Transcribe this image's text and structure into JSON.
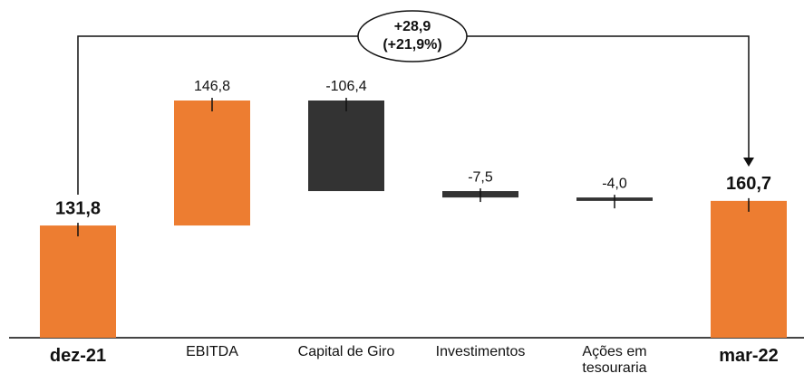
{
  "chart_data": {
    "type": "waterfall",
    "categories": [
      "dez-21",
      "EBITDA",
      "Capital de Giro",
      "Investimentos",
      "Ações em tesouraria",
      "mar-22"
    ],
    "values": [
      131.8,
      146.8,
      -106.4,
      -7.5,
      -4.0,
      160.7
    ],
    "value_labels": [
      "131,8",
      "146,8",
      "-106,4",
      "-7,5",
      "-4,0",
      "160,7"
    ],
    "is_total": [
      true,
      false,
      false,
      false,
      false,
      true
    ],
    "colors": [
      "#ed7d31",
      "#ed7d31",
      "#333333",
      "#333333",
      "#333333",
      "#ed7d31"
    ],
    "annotation": {
      "change": "+28,9",
      "percent": "(+21,9%)",
      "color": "#22b14c"
    }
  }
}
